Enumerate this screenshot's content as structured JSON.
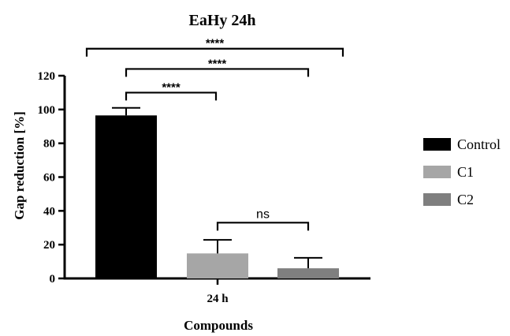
{
  "chart_data": {
    "type": "bar",
    "title": "EaHy 24h",
    "xlabel": "Compounds",
    "ylabel": "Gap reduction [%]",
    "categories": [
      "24 h"
    ],
    "ylim": [
      0,
      120
    ],
    "yticks": [
      0,
      20,
      40,
      60,
      80,
      100,
      120
    ],
    "grid": false,
    "legend_position": "right",
    "series": [
      {
        "name": "Control",
        "values": [
          96.5
        ],
        "error": [
          4.5
        ],
        "color": "#000000"
      },
      {
        "name": "C1",
        "values": [
          14.8
        ],
        "error": [
          8.0
        ],
        "color": "#a6a6a6"
      },
      {
        "name": "C2",
        "values": [
          6.0
        ],
        "error": [
          6.2
        ],
        "color": "#7f7f7f"
      }
    ],
    "significance": [
      {
        "label": "****",
        "from": "Control",
        "to": "C2",
        "y": 136
      },
      {
        "label": "****",
        "from": "Control",
        "to": "C1",
        "y": 124
      },
      {
        "label": "****",
        "from": "Control",
        "to": "C1",
        "y": 110
      },
      {
        "label": "ns",
        "from": "C1",
        "to": "C2",
        "y": 33
      }
    ]
  }
}
